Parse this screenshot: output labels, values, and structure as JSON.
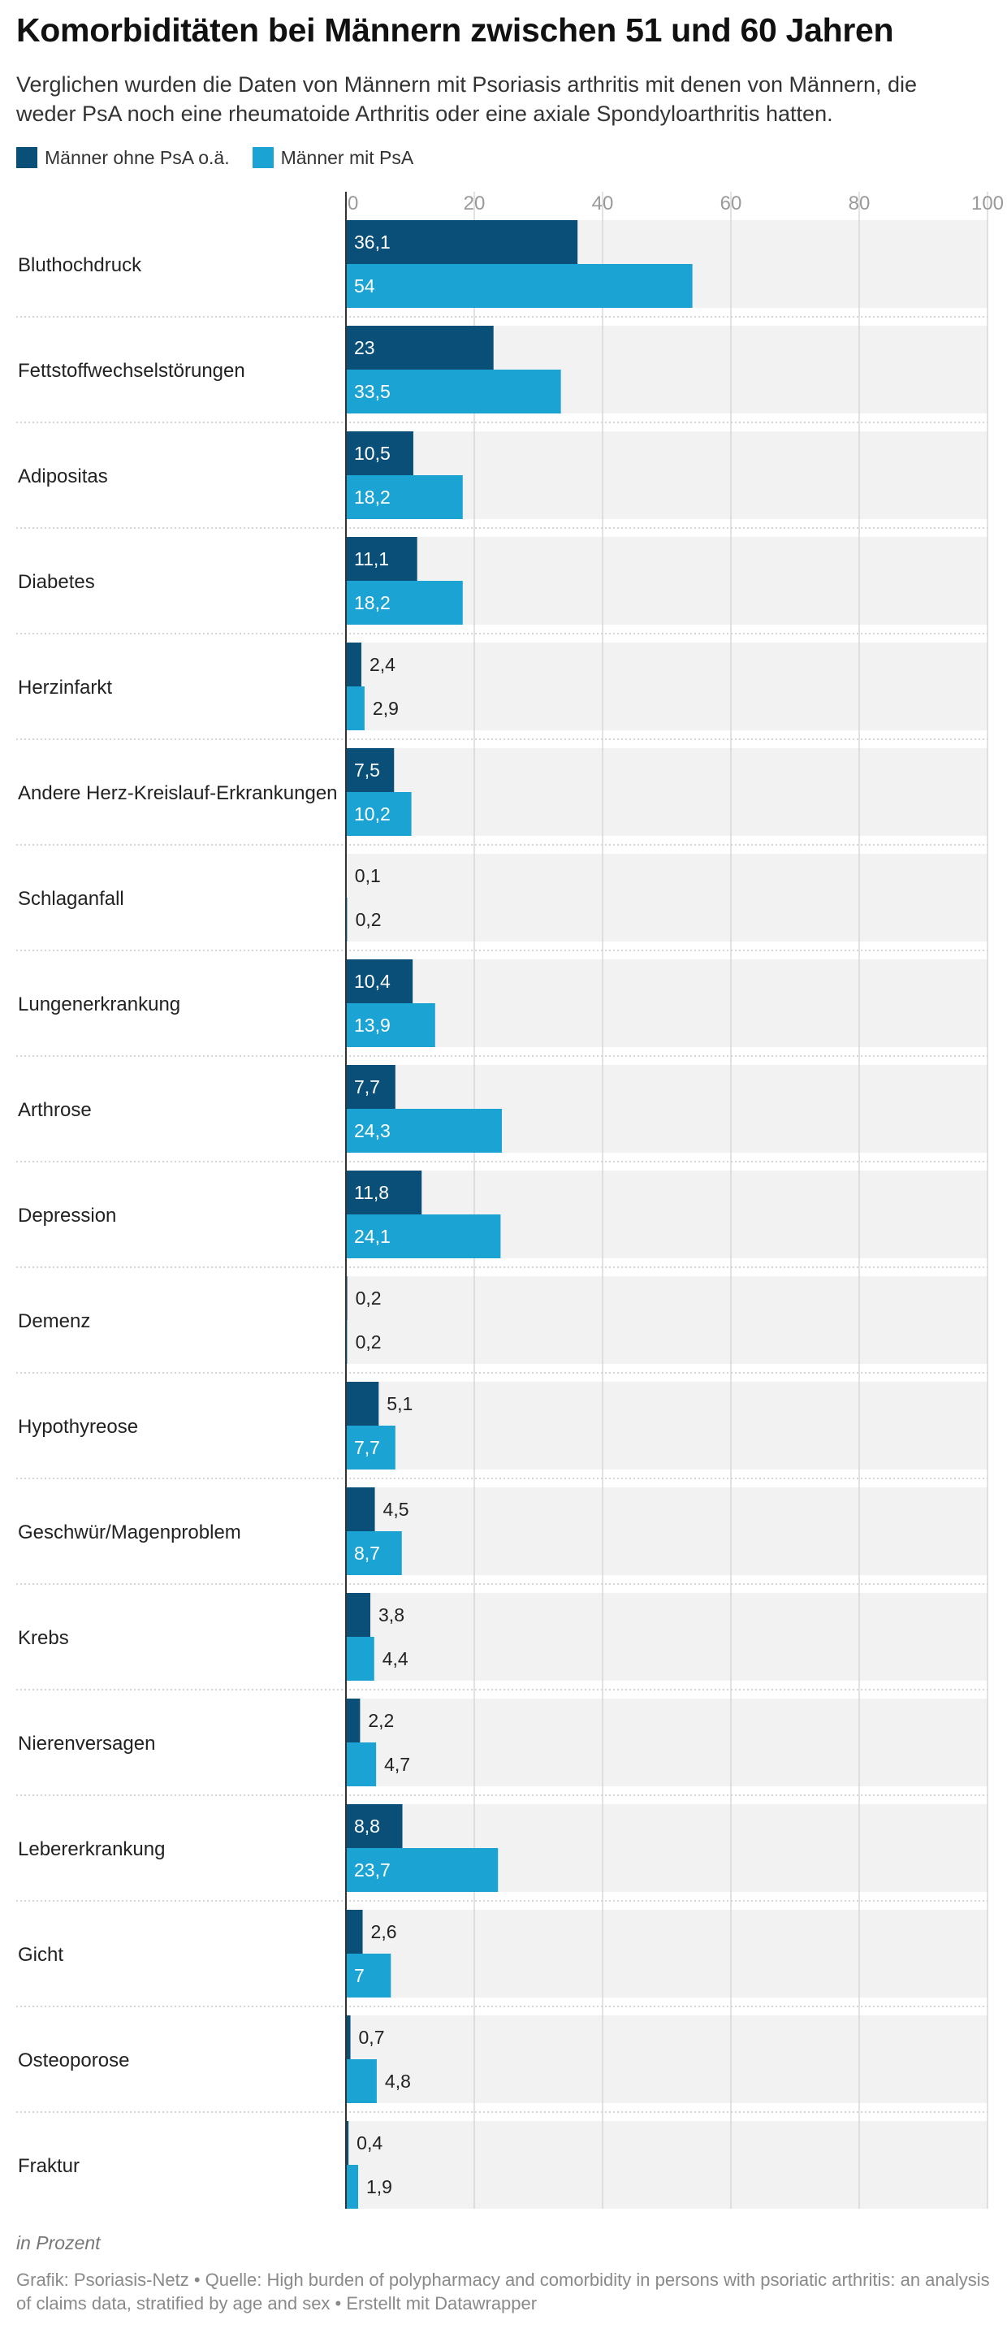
{
  "header": {
    "title": "Komorbiditäten bei Männern zwischen 51 und 60 Jahren",
    "subtitle": "Verglichen wurden die Daten von Männern mit Psoriasis arthritis mit denen von Männern, die weder PsA noch eine rheumatoide Arthritis oder eine axiale Spondyloarthritis hatten."
  },
  "legend": [
    {
      "label": "Männer ohne PsA o.ä.",
      "color": "#0a4f78"
    },
    {
      "label": "Männer mit PsA",
      "color": "#1ba3d3"
    }
  ],
  "chart_data": {
    "type": "bar",
    "orientation": "horizontal",
    "title": "Komorbiditäten bei Männern zwischen 51 und 60 Jahren",
    "xlim": [
      0,
      100
    ],
    "x_ticks": [
      "0",
      "20",
      "40",
      "60",
      "80",
      "100"
    ],
    "grid": true,
    "legend_position": "top-left",
    "categories": [
      "Bluthochdruck",
      "Fettstoffwechselstörungen",
      "Adipositas",
      "Diabetes",
      "Herzinfarkt",
      "Andere Herz-Kreislauf-Erkrankungen",
      "Schlaganfall",
      "Lungenerkrankung",
      "Arthrose",
      "Depression",
      "Demenz",
      "Hypothyreose",
      "Geschwür/Magenproblem",
      "Krebs",
      "Nierenversagen",
      "Lebererkrankung",
      "Gicht",
      "Osteoporose",
      "Fraktur"
    ],
    "series": [
      {
        "name": "Männer ohne PsA o.ä.",
        "color": "#0a4f78",
        "values": [
          36.1,
          23,
          10.5,
          11.1,
          2.4,
          7.5,
          0.1,
          10.4,
          7.7,
          11.8,
          0.2,
          5.1,
          4.5,
          3.8,
          2.2,
          8.8,
          2.6,
          0.7,
          0.4
        ],
        "labels": [
          "36,1",
          "23",
          "10,5",
          "11,1",
          "2,4",
          "7,5",
          "0,1",
          "10,4",
          "7,7",
          "11,8",
          "0,2",
          "5,1",
          "4,5",
          "3,8",
          "2,2",
          "8,8",
          "2,6",
          "0,7",
          "0,4"
        ]
      },
      {
        "name": "Männer mit PsA",
        "color": "#1ba3d3",
        "values": [
          54,
          33.5,
          18.2,
          18.2,
          2.9,
          10.2,
          0.2,
          13.9,
          24.3,
          24.1,
          0.2,
          7.7,
          8.7,
          4.4,
          4.7,
          23.7,
          7,
          4.8,
          1.9
        ],
        "labels": [
          "54",
          "33,5",
          "18,2",
          "18,2",
          "2,9",
          "10,2",
          "0,2",
          "13,9",
          "24,3",
          "24,1",
          "0,2",
          "7,7",
          "8,7",
          "4,4",
          "4,7",
          "23,7",
          "7",
          "4,8",
          "1,9"
        ]
      }
    ]
  },
  "notes": "in Prozent",
  "footer": "Grafik: Psoriasis-Netz • Quelle: High burden of polypharmacy and comorbidity in persons with psoriatic arthritis: an analysis of claims data, stratified by age and sex • Erstellt mit Datawrapper"
}
